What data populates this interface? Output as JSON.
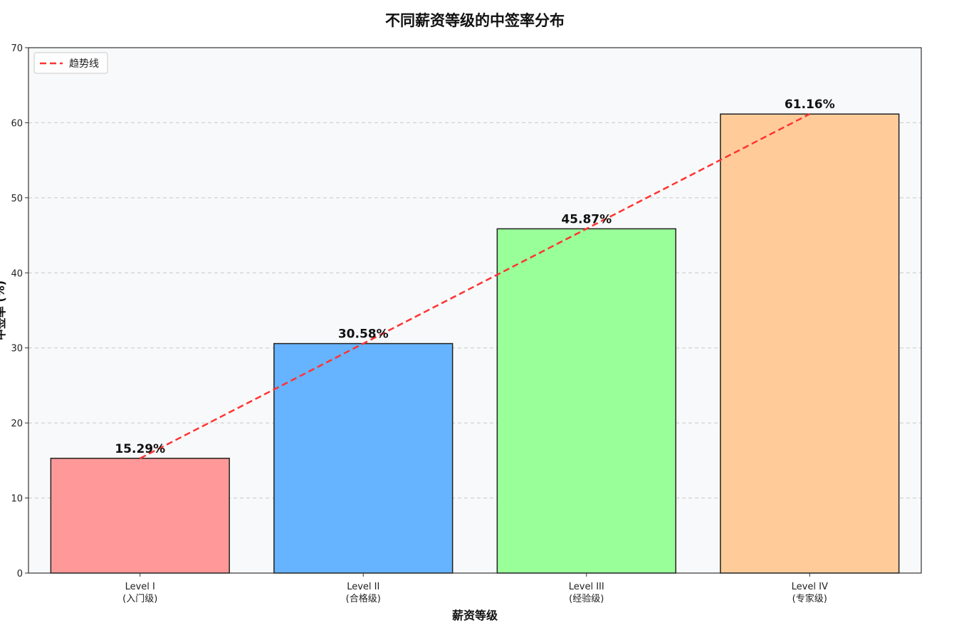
{
  "chart_data": {
    "type": "bar",
    "title": "不同薪资等级的中签率分布",
    "xlabel": "薪资等级",
    "ylabel": "中签率 (%)",
    "categories": [
      [
        "Level I",
        "(入门级)"
      ],
      [
        "Level II",
        "(合格级)"
      ],
      [
        "Level III",
        "(经验级)"
      ],
      [
        "Level IV",
        "(专家级)"
      ]
    ],
    "values": [
      15.29,
      30.58,
      45.87,
      61.16
    ],
    "value_labels": [
      "15.29%",
      "30.58%",
      "45.87%",
      "61.16%"
    ],
    "bar_colors": [
      "#ff9999",
      "#66b3ff",
      "#99ff99",
      "#ffcc99"
    ],
    "ylim": [
      0,
      70
    ],
    "yticks": [
      0,
      10,
      20,
      30,
      40,
      50,
      60,
      70
    ],
    "grid": "y-dashed",
    "trend_line": {
      "name": "趋势线",
      "values": [
        15.29,
        30.58,
        45.87,
        61.16
      ],
      "color": "#ff3333",
      "style": "dashed"
    },
    "legend": {
      "position": "top-left",
      "entries": [
        "趋势线"
      ]
    },
    "plot_background": "#f8f9fa"
  }
}
